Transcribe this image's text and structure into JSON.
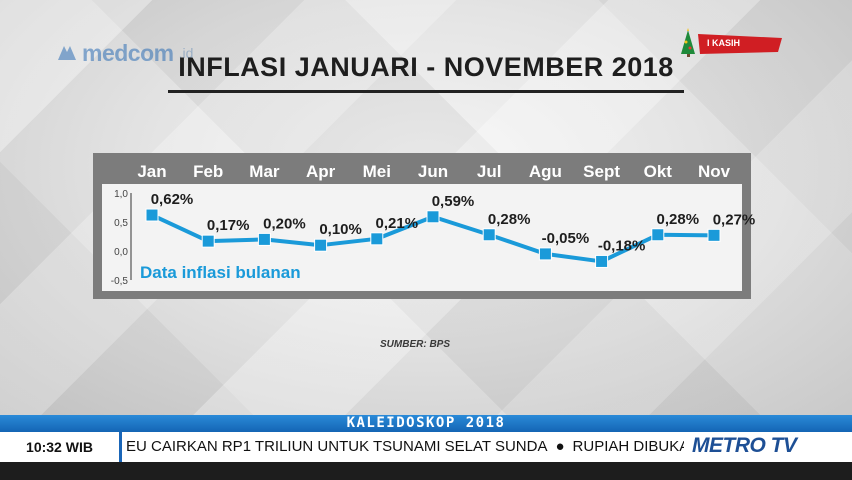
{
  "branding": {
    "logo_text": "medcom",
    "logo_tld": ".id",
    "ribbon_text": "I KASIH",
    "channel": "METRO TV"
  },
  "title": "INFLASI JANUARI - NOVEMBER 2018",
  "source": "SUMBER: BPS",
  "band_label": "KALEIDOSKOP 2018",
  "clock": "10:32 WIB",
  "ticker": {
    "headline_1": "EU CAIRKAN RP1 TRILIUN UNTUK TSUNAMI SELAT SUNDA",
    "bullet": "●",
    "headline_2": "RUPIAH DIBUKA"
  },
  "colors": {
    "line": "#1a9ad9",
    "marker": "#1a9ad9",
    "band": "#1a73c4",
    "legend_text": "#1a9ad9"
  },
  "chart_data": {
    "type": "line",
    "title": "INFLASI JANUARI - NOVEMBER 2018",
    "categories": [
      "Jan",
      "Feb",
      "Mar",
      "Apr",
      "Mei",
      "Jun",
      "Jul",
      "Agu",
      "Sept",
      "Okt",
      "Nov"
    ],
    "series": [
      {
        "name": "Data inflasi bulanan",
        "values": [
          0.62,
          0.17,
          0.2,
          0.1,
          0.21,
          0.59,
          0.28,
          -0.05,
          -0.18,
          0.28,
          0.27
        ],
        "labels": [
          "0,62%",
          "0,17%",
          "0,20%",
          "0,10%",
          "0,21%",
          "0,59%",
          "0,28%",
          "-0,05%",
          "-0,18%",
          "0,28%",
          "0,27%"
        ]
      }
    ],
    "ylim": [
      -0.5,
      1.0
    ],
    "yticks": [
      "1,0",
      "0,5",
      "0,0",
      "-0,5"
    ],
    "ytick_values": [
      1.0,
      0.5,
      0.0,
      -0.5
    ],
    "legend": "Data inflasi bulanan",
    "legend_position": "bottom-left",
    "grid": false
  }
}
